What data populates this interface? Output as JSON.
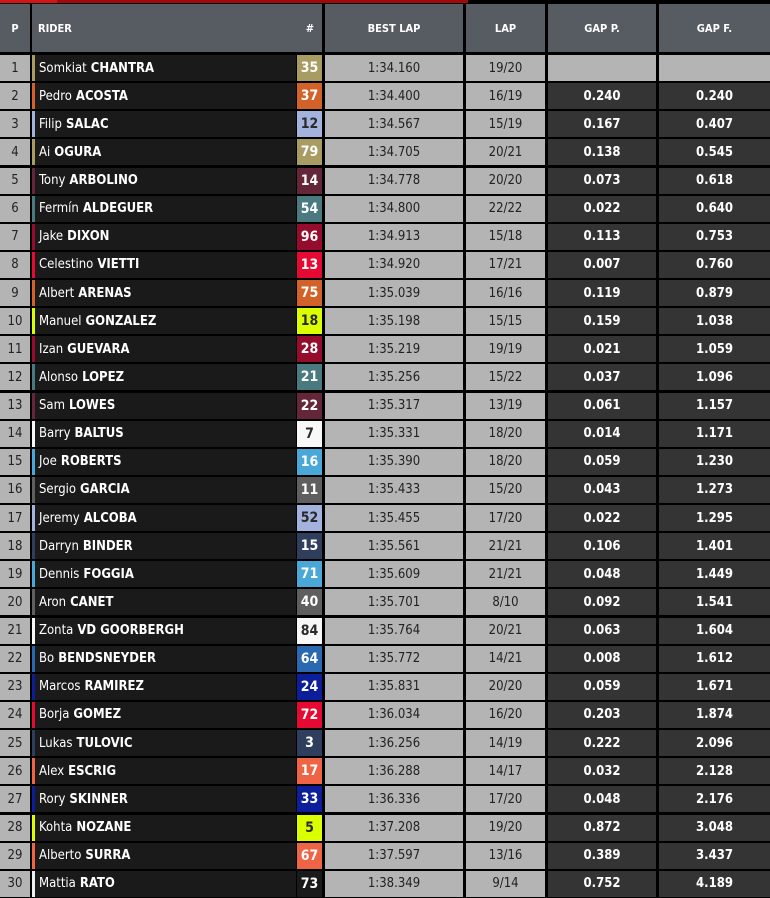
{
  "header": {
    "p": "P",
    "rider": "RIDER",
    "num": "#",
    "best_lap": "BEST LAP",
    "lap": "LAP",
    "gap_p": "GAP P.",
    "gap_f": "GAP F."
  },
  "rows": [
    {
      "pos": "1",
      "first": "Somkiat",
      "last": "CHANTRA",
      "num": "35",
      "color": "#a89c62",
      "dark": false,
      "best": "1:34.160",
      "lap": "19/20",
      "gap_p": "",
      "gap_f": ""
    },
    {
      "pos": "2",
      "first": "Pedro",
      "last": "ACOSTA",
      "num": "37",
      "color": "#d2622a",
      "dark": false,
      "best": "1:34.400",
      "lap": "16/19",
      "gap_p": "0.240",
      "gap_f": "0.240"
    },
    {
      "pos": "3",
      "first": "Filip",
      "last": "SALAC",
      "num": "12",
      "color": "#a3b3dd",
      "dark": true,
      "best": "1:34.567",
      "lap": "15/19",
      "gap_p": "0.167",
      "gap_f": "0.407"
    },
    {
      "pos": "4",
      "first": "Ai",
      "last": "OGURA",
      "num": "79",
      "color": "#a89c62",
      "dark": false,
      "best": "1:34.705",
      "lap": "20/21",
      "gap_p": "0.138",
      "gap_f": "0.545"
    },
    {
      "pos": "5",
      "first": "Tony",
      "last": "ARBOLINO",
      "num": "14",
      "color": "#66263a",
      "dark": false,
      "best": "1:34.778",
      "lap": "20/20",
      "gap_p": "0.073",
      "gap_f": "0.618"
    },
    {
      "pos": "6",
      "first": "Fermín",
      "last": "ALDEGUER",
      "num": "54",
      "color": "#4a7a80",
      "dark": false,
      "best": "1:34.800",
      "lap": "22/22",
      "gap_p": "0.022",
      "gap_f": "0.640"
    },
    {
      "pos": "7",
      "first": "Jake",
      "last": "DIXON",
      "num": "96",
      "color": "#960c2c",
      "dark": false,
      "best": "1:34.913",
      "lap": "15/18",
      "gap_p": "0.113",
      "gap_f": "0.753"
    },
    {
      "pos": "8",
      "first": "Celestino",
      "last": "VIETTI",
      "num": "13",
      "color": "#e60a32",
      "dark": false,
      "best": "1:34.920",
      "lap": "17/21",
      "gap_p": "0.007",
      "gap_f": "0.760"
    },
    {
      "pos": "9",
      "first": "Albert",
      "last": "ARENAS",
      "num": "75",
      "color": "#d2622a",
      "dark": false,
      "best": "1:35.039",
      "lap": "16/16",
      "gap_p": "0.119",
      "gap_f": "0.879"
    },
    {
      "pos": "10",
      "first": "Manuel",
      "last": "GONZALEZ",
      "num": "18",
      "color": "#dcff00",
      "dark": true,
      "best": "1:35.198",
      "lap": "15/15",
      "gap_p": "0.159",
      "gap_f": "1.038"
    },
    {
      "pos": "11",
      "first": "Izan",
      "last": "GUEVARA",
      "num": "28",
      "color": "#960c2c",
      "dark": false,
      "best": "1:35.219",
      "lap": "19/19",
      "gap_p": "0.021",
      "gap_f": "1.059"
    },
    {
      "pos": "12",
      "first": "Alonso",
      "last": "LOPEZ",
      "num": "21",
      "color": "#4a7a80",
      "dark": false,
      "best": "1:35.256",
      "lap": "15/22",
      "gap_p": "0.037",
      "gap_f": "1.096"
    },
    {
      "pos": "13",
      "first": "Sam",
      "last": "LOWES",
      "num": "22",
      "color": "#66263a",
      "dark": false,
      "best": "1:35.317",
      "lap": "13/19",
      "gap_p": "0.061",
      "gap_f": "1.157"
    },
    {
      "pos": "14",
      "first": "Barry",
      "last": "BALTUS",
      "num": "7",
      "color": "#f8f8f8",
      "dark": true,
      "best": "1:35.331",
      "lap": "18/20",
      "gap_p": "0.014",
      "gap_f": "1.171"
    },
    {
      "pos": "15",
      "first": "Joe",
      "last": "ROBERTS",
      "num": "16",
      "color": "#4aa8d8",
      "dark": false,
      "best": "1:35.390",
      "lap": "18/20",
      "gap_p": "0.059",
      "gap_f": "1.230"
    },
    {
      "pos": "16",
      "first": "Sergio",
      "last": "GARCIA",
      "num": "11",
      "color": "#5f5f5f",
      "dark": false,
      "best": "1:35.433",
      "lap": "15/20",
      "gap_p": "0.043",
      "gap_f": "1.273"
    },
    {
      "pos": "17",
      "first": "Jeremy",
      "last": "ALCOBA",
      "num": "52",
      "color": "#a3b3dd",
      "dark": true,
      "best": "1:35.455",
      "lap": "17/20",
      "gap_p": "0.022",
      "gap_f": "1.295"
    },
    {
      "pos": "18",
      "first": "Darryn",
      "last": "BINDER",
      "num": "15",
      "color": "#2e3e5c",
      "dark": false,
      "best": "1:35.561",
      "lap": "21/21",
      "gap_p": "0.106",
      "gap_f": "1.401"
    },
    {
      "pos": "19",
      "first": "Dennis",
      "last": "FOGGIA",
      "num": "71",
      "color": "#4aa8d8",
      "dark": false,
      "best": "1:35.609",
      "lap": "21/21",
      "gap_p": "0.048",
      "gap_f": "1.449"
    },
    {
      "pos": "20",
      "first": "Aron",
      "last": "CANET",
      "num": "40",
      "color": "#5f5f5f",
      "dark": false,
      "best": "1:35.701",
      "lap": "8/10",
      "gap_p": "0.092",
      "gap_f": "1.541"
    },
    {
      "pos": "21",
      "first": "Zonta",
      "last": "VD GOORBERGH",
      "num": "84",
      "color": "#f8f8f8",
      "dark": true,
      "best": "1:35.764",
      "lap": "20/21",
      "gap_p": "0.063",
      "gap_f": "1.604"
    },
    {
      "pos": "22",
      "first": "Bo",
      "last": "BENDSNEYDER",
      "num": "64",
      "color": "#2a68b0",
      "dark": false,
      "best": "1:35.772",
      "lap": "14/21",
      "gap_p": "0.008",
      "gap_f": "1.612"
    },
    {
      "pos": "23",
      "first": "Marcos",
      "last": "RAMIREZ",
      "num": "24",
      "color": "#0c1e9a",
      "dark": false,
      "best": "1:35.831",
      "lap": "20/20",
      "gap_p": "0.059",
      "gap_f": "1.671"
    },
    {
      "pos": "24",
      "first": "Borja",
      "last": "GOMEZ",
      "num": "72",
      "color": "#e60a32",
      "dark": false,
      "best": "1:36.034",
      "lap": "16/20",
      "gap_p": "0.203",
      "gap_f": "1.874"
    },
    {
      "pos": "25",
      "first": "Lukas",
      "last": "TULOVIC",
      "num": "3",
      "color": "#2e3e5c",
      "dark": false,
      "best": "1:36.256",
      "lap": "14/19",
      "gap_p": "0.222",
      "gap_f": "2.096"
    },
    {
      "pos": "26",
      "first": "Alex",
      "last": "ESCRIG",
      "num": "17",
      "color": "#f06446",
      "dark": false,
      "best": "1:36.288",
      "lap": "14/17",
      "gap_p": "0.032",
      "gap_f": "2.128"
    },
    {
      "pos": "27",
      "first": "Rory",
      "last": "SKINNER",
      "num": "33",
      "color": "#0c1e9a",
      "dark": false,
      "best": "1:36.336",
      "lap": "17/20",
      "gap_p": "0.048",
      "gap_f": "2.176"
    },
    {
      "pos": "28",
      "first": "Kohta",
      "last": "NOZANE",
      "num": "5",
      "color": "#dcff00",
      "dark": true,
      "best": "1:37.208",
      "lap": "19/20",
      "gap_p": "0.872",
      "gap_f": "3.048"
    },
    {
      "pos": "29",
      "first": "Alberto",
      "last": "SURRA",
      "num": "67",
      "color": "#f06446",
      "dark": false,
      "best": "1:37.597",
      "lap": "13/16",
      "gap_p": "0.389",
      "gap_f": "3.437"
    },
    {
      "pos": "30",
      "first": "Mattia",
      "last": "RATO",
      "num": "73",
      "color": "#1a1a1a",
      "stripe": "#f0f0f0",
      "dark": false,
      "best": "1:38.349",
      "lap": "9/14",
      "gap_p": "0.752",
      "gap_f": "4.189"
    }
  ]
}
